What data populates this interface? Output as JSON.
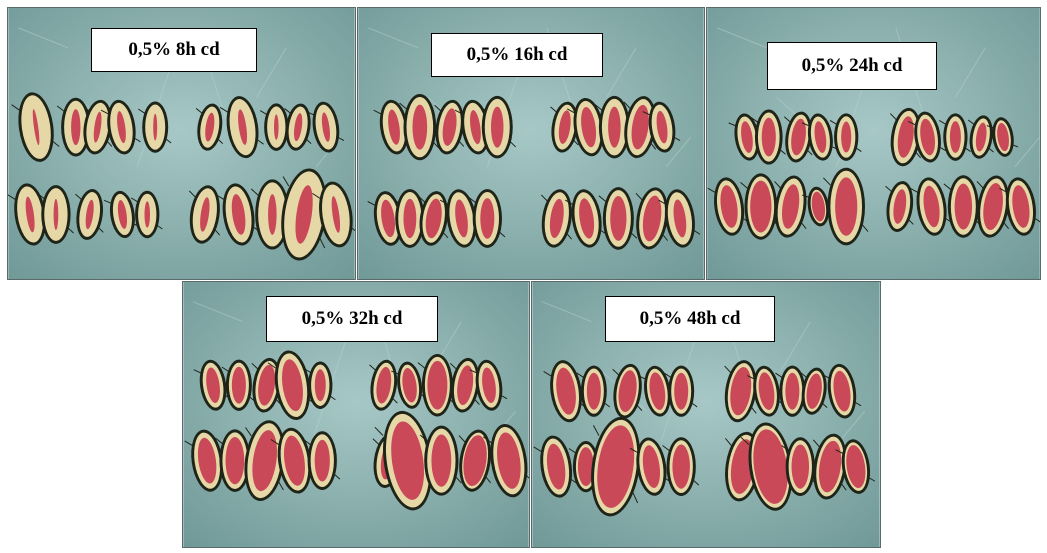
{
  "panels": [
    {
      "id": "p1",
      "label": "0,5% 8h cd"
    },
    {
      "id": "p2",
      "label": "0,5% 16h cd"
    },
    {
      "id": "p3",
      "label": "0,5% 24h cd"
    },
    {
      "id": "p4",
      "label": "0,5% 32h cd"
    },
    {
      "id": "p5",
      "label": "0,5% 48h cd"
    }
  ],
  "colors": {
    "background": "#8fb6b6",
    "seed_skin": "#1e2418",
    "seed_flesh": "#e6d7a6",
    "seed_stain": "#c4304a"
  },
  "stain_levels": {
    "p1": [
      0.15,
      0.4,
      0.3,
      0.35,
      0.2,
      0.45,
      0.3,
      0.25,
      0.4,
      0.35,
      0.3,
      0.2,
      0.35,
      0.45,
      0.3,
      0.35,
      0.5,
      0.3,
      0.4,
      0.25
    ],
    "p2": [
      0.5,
      0.55,
      0.6,
      0.45,
      0.5,
      0.55,
      0.6,
      0.5,
      0.65,
      0.5,
      0.6,
      0.55,
      0.7,
      0.5,
      0.6,
      0.55,
      0.6,
      0.65,
      0.7,
      0.5
    ],
    "p3": [
      0.6,
      0.65,
      0.7,
      0.6,
      0.55,
      0.65,
      0.7,
      0.6,
      0.6,
      0.75,
      0.7,
      0.8,
      0.65,
      0.85,
      0.7,
      0.6,
      0.65,
      0.7,
      0.75,
      0.7
    ],
    "p4": [
      0.65,
      0.7,
      0.75,
      0.7,
      0.6,
      0.7,
      0.75,
      0.8,
      0.7,
      0.65,
      0.7,
      0.75,
      0.7,
      0.75,
      0.65,
      0.6,
      0.75,
      0.7,
      0.9,
      0.75
    ],
    "p5": [
      0.75,
      0.7,
      0.8,
      0.75,
      0.7,
      0.8,
      0.75,
      0.7,
      0.8,
      0.75,
      0.7,
      0.8,
      0.85,
      0.7,
      0.75,
      0.8,
      0.9,
      0.75,
      0.8,
      0.85
    ]
  }
}
